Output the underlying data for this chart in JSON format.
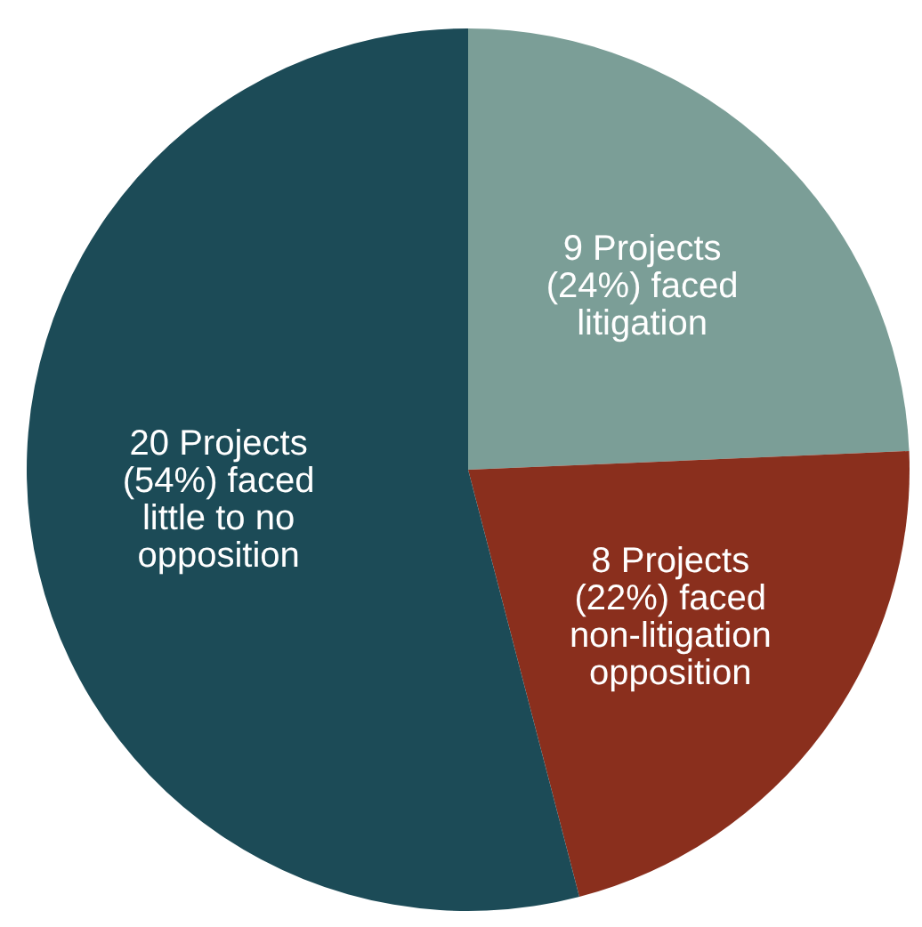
{
  "chart_data": {
    "type": "pie",
    "categories": [
      "9 Projects (24%) faced litigation",
      "8 Projects (22%) faced non-litigation opposition",
      "20 Projects (54%) faced little to no opposition"
    ],
    "values": [
      9,
      8,
      20
    ],
    "colors": [
      "#7b9e97",
      "#8a2f1d",
      "#1c4b57"
    ]
  }
}
